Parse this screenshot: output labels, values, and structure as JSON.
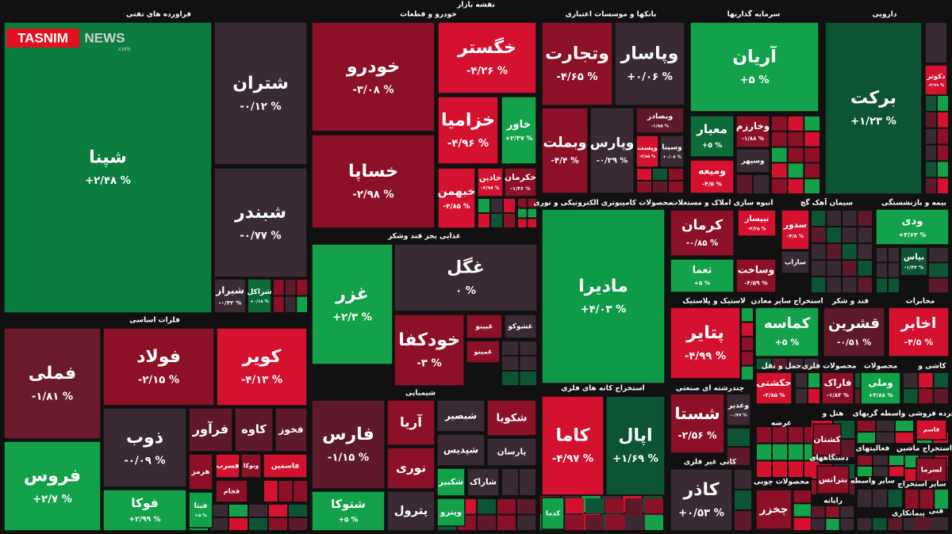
{
  "title": "نقشه بازار",
  "watermark": {
    "brand": "TASNIM",
    "suffix": "NEWS",
    "domain": ".com"
  },
  "sectors": [
    {
      "title": "فراورده های نفتی",
      "tiles": [
        {
          "name": "شپنا",
          "change": "+۲/۴۸ %",
          "color": "#0b7d3e"
        },
        {
          "name": "شتران",
          "change": "-۰/۱۲ %",
          "color": "#3a2a33"
        },
        {
          "name": "شبندر",
          "change": "-۰/۷۷ %",
          "color": "#3a2a33"
        },
        {
          "name": "شیراز",
          "change": "-۰/۴۲ %",
          "color": "#3a2a33"
        },
        {
          "name": "شراکل",
          "change": "+۰/۱۸ %",
          "color": "#0d6b3a"
        }
      ]
    },
    {
      "title": "خودرو و قطعات",
      "tiles": [
        {
          "name": "خودرو",
          "change": "-۳/۰۸ %",
          "color": "#8c1027"
        },
        {
          "name": "خساپا",
          "change": "-۲/۹۸ %",
          "color": "#8c1027"
        },
        {
          "name": "خگستر",
          "change": "-۴/۲۶ %",
          "color": "#d41230"
        },
        {
          "name": "خزامیا",
          "change": "-۴/۹۶ %",
          "color": "#d41230"
        },
        {
          "name": "خاور",
          "change": "+۲/۴۷ %",
          "color": "#13a24a"
        },
        {
          "name": "خبهمن",
          "change": "-۴/۸۵ %",
          "color": "#d41230"
        },
        {
          "name": "خاذین",
          "change": "-۴/۹۷ %",
          "color": "#d41230"
        },
        {
          "name": "خکرمان",
          "change": "-۱/۳۶ %",
          "color": "#8c1027"
        }
      ]
    },
    {
      "title": "بانکها و موسسات اعتباری",
      "tiles": [
        {
          "name": "وتجارت",
          "change": "-۴/۶۵ %",
          "color": "#8c1027"
        },
        {
          "name": "وپاسار",
          "change": "+۰/۰۶ %",
          "color": "#3a2a33"
        },
        {
          "name": "وبملت",
          "change": "-۴/۴ %",
          "color": "#8c1027"
        },
        {
          "name": "وپارس",
          "change": "-۰/۲۹ %",
          "color": "#3a2a33"
        },
        {
          "name": "وبصادر",
          "change": "-۱/۸۵ %",
          "color": "#5e1a2b"
        },
        {
          "name": "وپست",
          "change": "-۴/۸۵ %",
          "color": "#d41230"
        },
        {
          "name": "وسینا",
          "change": "+۰/۰۸ %",
          "color": "#3a2a33"
        }
      ]
    },
    {
      "title": "سرمایه گذاریها",
      "tiles": [
        {
          "name": "آریان",
          "change": "+۵ %",
          "color": "#13a24a"
        },
        {
          "name": "معیار",
          "change": "+۵ %",
          "color": "#0d6b3a"
        },
        {
          "name": "وخارزم",
          "change": "-۱/۸۸ %",
          "color": "#8c1027"
        },
        {
          "name": "وسپهر",
          "color": "#3a2a33"
        },
        {
          "name": "ومیعه",
          "change": "-۴/۵ %",
          "color": "#d41230"
        }
      ]
    },
    {
      "title": "دارویی",
      "tiles": [
        {
          "name": "برکت",
          "change": "+۱/۲۳ %",
          "color": "#0d5434"
        },
        {
          "name": "دکوثر",
          "change": "-۴/۹۹ %",
          "color": "#d41230"
        }
      ]
    },
    {
      "title": "محصولات کامپیوتری الکترونیکی و نوری",
      "tiles": [
        {
          "name": "مادیرا",
          "change": "+۴/۰۳ %",
          "color": "#0f9a48"
        }
      ]
    },
    {
      "title": "انبوه سازی املاک و مستغلات",
      "tiles": [
        {
          "name": "کرمان",
          "change": "-۰/۸۵ %",
          "color": "#8c1027"
        },
        {
          "name": "تیپساز",
          "change": "-۴/۲۵ %",
          "color": "#d41230"
        },
        {
          "name": "ثعما",
          "change": "+۵ %",
          "color": "#13a24a"
        },
        {
          "name": "وساخت",
          "change": "-۴/۵۹ %",
          "color": "#8c1027"
        }
      ]
    },
    {
      "title": "سیمان آهک گچ",
      "tiles": [
        {
          "name": "سدور",
          "change": "-۴/۸ %",
          "color": "#d41230"
        },
        {
          "name": "ساراب",
          "color": "#3a2a33"
        }
      ]
    },
    {
      "title": "بیمه و بازنشستگی",
      "tiles": [
        {
          "name": "ودی",
          "change": "+۳/۶۳ %",
          "color": "#13a24a"
        },
        {
          "name": "بپاس",
          "change": "-۱/۴۴ %",
          "color": "#0d5434"
        }
      ]
    },
    {
      "title": "غذایی بجز قند وشکر",
      "tiles": [
        {
          "name": "غزر",
          "change": "+۲/۳ %",
          "color": "#13a24a"
        },
        {
          "name": "غگل",
          "change": "۰ %",
          "color": "#3a2a33"
        },
        {
          "name": "خودکفا",
          "change": "-۳ %",
          "color": "#8c1027"
        },
        {
          "name": "غبینو",
          "color": "#8c1027"
        },
        {
          "name": "غشوکو",
          "color": "#3a2a33"
        },
        {
          "name": "غمینو",
          "color": "#8c1027"
        }
      ]
    },
    {
      "title": "فلزات اساسی",
      "tiles": [
        {
          "name": "فملی",
          "change": "-۱/۸۱ %",
          "color": "#6b1a2c"
        },
        {
          "name": "فولاد",
          "change": "-۲/۱۵ %",
          "color": "#8c1027"
        },
        {
          "name": "کویر",
          "change": "-۴/۱۳ %",
          "color": "#d41230"
        },
        {
          "name": "فروس",
          "change": "+۲/۷ %",
          "color": "#13a24a"
        },
        {
          "name": "ذوب",
          "change": "-۰/۰۹ %",
          "color": "#3a2a33"
        },
        {
          "name": "فوکا",
          "change": "+۲/۹۹ %",
          "color": "#13a24a"
        },
        {
          "name": "فرآور",
          "color": "#5e1a2b"
        },
        {
          "name": "کاوه",
          "color": "#5e1a2b"
        },
        {
          "name": "فخوز",
          "color": "#5e1a2b"
        },
        {
          "name": "هرمز",
          "color": "#8c1027"
        },
        {
          "name": "فسرب",
          "color": "#d41230"
        },
        {
          "name": "ونوکا",
          "color": "#8c1027"
        },
        {
          "name": "فاسمین",
          "color": "#d41230"
        },
        {
          "name": "فجام",
          "color": "#8c1027"
        },
        {
          "name": "فیتا",
          "change": "+۵ %",
          "color": "#13a24a"
        }
      ]
    },
    {
      "title": "شیمیایی",
      "tiles": [
        {
          "name": "فارس",
          "change": "-۱/۱۵ %",
          "color": "#5e1a2b"
        },
        {
          "name": "شتوکا",
          "change": "+۵ %",
          "color": "#13a24a"
        },
        {
          "name": "آریا",
          "color": "#8c1027"
        },
        {
          "name": "نوری",
          "color": "#8c1027"
        },
        {
          "name": "پترول",
          "color": "#3a2a33"
        },
        {
          "name": "شبصیر",
          "color": "#3a2a33"
        },
        {
          "name": "شکویا",
          "color": "#8c1027"
        },
        {
          "name": "شپدیس",
          "color": "#3a2a33"
        },
        {
          "name": "پارسان",
          "color": "#3a2a33"
        },
        {
          "name": "شکبیر",
          "color": "#13a24a"
        },
        {
          "name": "شاراک",
          "color": "#3a2a33"
        },
        {
          "name": "وپترو",
          "color": "#13a24a"
        }
      ]
    },
    {
      "title": "استخراج کانه های فلزی",
      "tiles": [
        {
          "name": "کاما",
          "change": "-۴/۹۷ %",
          "color": "#d41230"
        },
        {
          "name": "اپال",
          "change": "+۱/۶۹ %",
          "color": "#0d5434"
        },
        {
          "name": "کدما",
          "color": "#13a24a"
        }
      ]
    },
    {
      "title": "لاستیک و پلاستیک",
      "tiles": [
        {
          "name": "پتایر",
          "change": "-۴/۹۹ %",
          "color": "#d41230"
        }
      ]
    },
    {
      "title": "استخراج سایر معادن",
      "tiles": [
        {
          "name": "کماسه",
          "change": "+۵ %",
          "color": "#13a24a"
        }
      ]
    },
    {
      "title": "قند و شکر",
      "tiles": [
        {
          "name": "قشرین",
          "change": "-۰/۵۱ %",
          "color": "#5e1a2b"
        }
      ]
    },
    {
      "title": "مخابرات",
      "tiles": [
        {
          "name": "اخابر",
          "change": "-۴/۵ %",
          "color": "#d41230"
        }
      ]
    },
    {
      "title": "چندرشته ای صنعتی",
      "tiles": [
        {
          "name": "شستا",
          "change": "-۲/۵۶ %",
          "color": "#8c1027"
        },
        {
          "name": "وغدیر",
          "change": "-۰/۷۷ %",
          "color": "#3a2a33"
        }
      ]
    },
    {
      "title": "کانی غیر فلزی",
      "tiles": [
        {
          "name": "کاذر",
          "change": "+۰/۵۳ %",
          "color": "#3a2a33"
        }
      ]
    },
    {
      "title": "حمل و نقل",
      "tiles": [
        {
          "name": "حکشتی",
          "change": "-۴/۸۵ %",
          "color": "#d41230"
        }
      ]
    },
    {
      "title": "محصولات فلزی",
      "tiles": [
        {
          "name": "فاراک",
          "change": "-۱/۸۳ %",
          "color": "#8c1027"
        }
      ]
    },
    {
      "title": "محصولات",
      "tiles": [
        {
          "name": "وملی",
          "change": "+۳/۸۸ %",
          "color": "#13a24a"
        }
      ]
    },
    {
      "title": "کاشی و",
      "tiles": []
    },
    {
      "title": "عرضه",
      "tiles": []
    },
    {
      "title": "هتل و",
      "tiles": [
        {
          "name": "کشتان",
          "color": "#8c1027"
        }
      ]
    },
    {
      "title": "واسطه گریهای",
      "tiles": []
    },
    {
      "title": "خرده فروشی",
      "tiles": [
        {
          "name": "قاسم",
          "color": "#d41230"
        }
      ]
    },
    {
      "title": "دستگاههای",
      "tiles": [
        {
          "name": "بترانس",
          "color": "#8c1027"
        }
      ]
    },
    {
      "title": "فعالیتهای",
      "tiles": []
    },
    {
      "title": "استخراج ماشین",
      "tiles": [
        {
          "name": "لسرما",
          "color": "#8c1027"
        }
      ]
    },
    {
      "title": "محصولات چوبی",
      "tiles": [
        {
          "name": "چخزر",
          "color": "#8c1027"
        }
      ]
    },
    {
      "title": "رایانه",
      "tiles": []
    },
    {
      "title": "سایر واسطه",
      "tiles": []
    },
    {
      "title": "استخراج",
      "tiles": []
    },
    {
      "title": "سایر",
      "tiles": []
    },
    {
      "title": "پیمانکاری",
      "tiles": []
    },
    {
      "title": "فنی",
      "tiles": []
    }
  ]
}
